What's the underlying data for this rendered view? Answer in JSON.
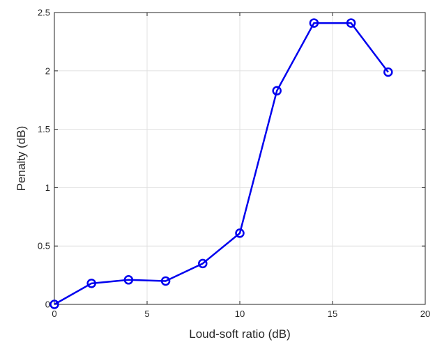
{
  "chart_data": {
    "type": "line",
    "title": "",
    "xlabel": "Loud-soft ratio (dB)",
    "ylabel": "Penalty (dB)",
    "xlim": [
      0,
      20
    ],
    "ylim": [
      0,
      2.5
    ],
    "xticks": [
      0,
      5,
      10,
      15,
      20
    ],
    "yticks": [
      0,
      0.5,
      1,
      1.5,
      2,
      2.5
    ],
    "xtick_labels": [
      "0",
      "5",
      "10",
      "15",
      "20"
    ],
    "ytick_labels": [
      "0",
      "0.5",
      "1",
      "1.5",
      "2",
      "2.5"
    ],
    "grid": true,
    "legend": "none",
    "series": [
      {
        "color": "#0000ee",
        "marker": "circle",
        "x": [
          0,
          2,
          4,
          6,
          8,
          10,
          12,
          14,
          16,
          18
        ],
        "y": [
          0.0,
          0.18,
          0.21,
          0.2,
          0.35,
          0.61,
          1.83,
          2.41,
          2.41,
          1.99
        ]
      }
    ]
  }
}
